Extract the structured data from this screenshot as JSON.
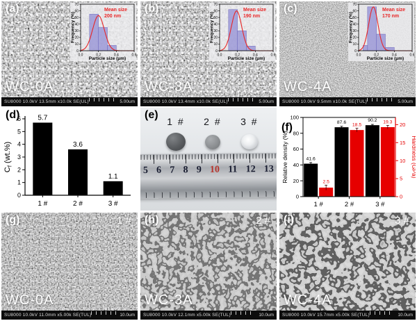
{
  "figure": {
    "panels": {
      "a": {
        "letter": "(a)",
        "sample": "WC-0A",
        "status": "SU8000 10.0kV 13.5mm x10.0k SE(UL)",
        "scale": "5.00um"
      },
      "b": {
        "letter": "(b)",
        "sample": "WC-3A",
        "status": "SU8000 10.0kV 13.4mm x10.0k SE(UL)",
        "scale": "5.00um"
      },
      "c": {
        "letter": "(c)",
        "sample": "WC-4A",
        "status": "SU8000 10.0kV 9.5mm x10.0k SE(TUL)",
        "scale": "5.00um"
      },
      "d": {
        "letter": "(d)"
      },
      "e": {
        "letter": "(e)",
        "labels": [
          "1 #",
          "2 #",
          "3 #"
        ],
        "ruler": [
          "5",
          "6",
          "7",
          "8",
          "9",
          "10",
          "11",
          "12",
          "13"
        ]
      },
      "f": {
        "letter": "(f)"
      },
      "g": {
        "letter": "(g)",
        "corner": "1 #",
        "sample": "WC-0A",
        "status": "SU8000 10.0kV 11.0mm x5.00k SE(TUL)",
        "scale": "10.0um"
      },
      "h": {
        "letter": "(h)",
        "corner": "2 #",
        "sample": "WC-3A",
        "status": "SU8000 10.0kV 12.1mm x5.00k SE(TUL)",
        "scale": "10.0um"
      },
      "i": {
        "letter": "(i)",
        "corner": "3 #",
        "sample": "WC-4A",
        "status": "SU8000 10.0kV 15.7mm x5.00k SE(TUL)",
        "scale": "10.0um"
      }
    }
  },
  "colors": {
    "hist_bar": "#9793d6",
    "hist_edge": "#6f6abc",
    "hist_curve": "#e82525",
    "bar_black": "#000000",
    "bar_red": "#e60000",
    "ruler_red": "#b5342c"
  },
  "chart_data": [
    {
      "id": "inset-a",
      "renderer": "hist",
      "type": "bar",
      "annotation": [
        "Mean size",
        "200 nm"
      ],
      "xlabel": "Particle size (μm)",
      "ylabel": "Frequency (%)",
      "xlim": [
        0,
        0.6
      ],
      "ylim": [
        0,
        70
      ],
      "xticks": [
        0.0,
        0.2,
        0.4,
        0.6
      ],
      "yticks": [
        0,
        10,
        20,
        30,
        40,
        50,
        60,
        70
      ],
      "bins": [
        {
          "x0": 0.1,
          "x1": 0.2,
          "y": 55
        },
        {
          "x0": 0.2,
          "x1": 0.3,
          "y": 35
        },
        {
          "x0": 0.3,
          "x1": 0.4,
          "y": 8
        }
      ],
      "gauss": {
        "mu": 0.2,
        "sigma": 0.065,
        "amp": 53
      }
    },
    {
      "id": "inset-b",
      "renderer": "hist",
      "type": "bar",
      "annotation": [
        "Mean size",
        "190 nm"
      ],
      "xlabel": "Particle size (μm)",
      "ylabel": "Frequency (%)",
      "xlim": [
        0,
        0.6
      ],
      "ylim": [
        0,
        70
      ],
      "xticks": [
        0.0,
        0.2,
        0.4,
        0.6
      ],
      "yticks": [
        0,
        10,
        20,
        30,
        40,
        50,
        60,
        70
      ],
      "bins": [
        {
          "x0": 0.1,
          "x1": 0.2,
          "y": 62
        },
        {
          "x0": 0.2,
          "x1": 0.3,
          "y": 30
        },
        {
          "x0": 0.3,
          "x1": 0.4,
          "y": 7
        }
      ],
      "gauss": {
        "mu": 0.19,
        "sigma": 0.058,
        "amp": 60
      }
    },
    {
      "id": "inset-c",
      "renderer": "hist",
      "type": "bar",
      "annotation": [
        "Mean size",
        "170 nm"
      ],
      "xlabel": "Particle size (μm)",
      "ylabel": "Frequency (%)",
      "xlim": [
        0,
        0.6
      ],
      "ylim": [
        0,
        70
      ],
      "xticks": [
        0.0,
        0.2,
        0.4,
        0.6
      ],
      "yticks": [
        0,
        10,
        20,
        30,
        40,
        50,
        60,
        70
      ],
      "bins": [
        {
          "x0": 0.05,
          "x1": 0.1,
          "y": 8
        },
        {
          "x0": 0.1,
          "x1": 0.2,
          "y": 66
        },
        {
          "x0": 0.2,
          "x1": 0.3,
          "y": 25
        },
        {
          "x0": 0.3,
          "x1": 0.4,
          "y": 5
        }
      ],
      "gauss": {
        "mu": 0.165,
        "sigma": 0.052,
        "amp": 66
      }
    },
    {
      "id": "chart-d",
      "renderer": "bars",
      "type": "bar",
      "categories": [
        "1 #",
        "2 #",
        "3 #"
      ],
      "values": [
        5.7,
        3.6,
        1.1
      ],
      "value_labels": [
        "5.7",
        "3.6",
        "1.1"
      ],
      "ylabel_main": "C",
      "ylabel_sub": "f",
      "ylabel_rest": " (wt.%)",
      "ylim": [
        0,
        6
      ],
      "yticks": [
        0,
        1,
        2,
        3,
        4,
        5,
        6
      ]
    },
    {
      "id": "chart-f",
      "renderer": "dualbars",
      "type": "bar",
      "categories": [
        "1 #",
        "2 #",
        "3 #"
      ],
      "series": [
        {
          "name": "Relative density (%)",
          "values": [
            41.6,
            87.6,
            90.2
          ],
          "labels": [
            "41.6",
            "87.6",
            "90.2"
          ],
          "err": [
            1.5,
            1.2,
            1.0
          ],
          "color": "#000000",
          "axis": "left"
        },
        {
          "name": "Hardness (GPa)",
          "values": [
            2.5,
            18.5,
            19.3
          ],
          "labels": [
            "2.5",
            "18.5",
            "19.3"
          ],
          "err": [
            0.7,
            0.5,
            0.5
          ],
          "color": "#e60000",
          "axis": "right"
        }
      ],
      "ylim_left": [
        0,
        100
      ],
      "yticks_left": [
        0,
        20,
        40,
        60,
        80,
        100
      ],
      "ylim_right": [
        0,
        22
      ],
      "yticks_right": [
        0,
        5,
        10,
        15,
        20
      ]
    }
  ]
}
